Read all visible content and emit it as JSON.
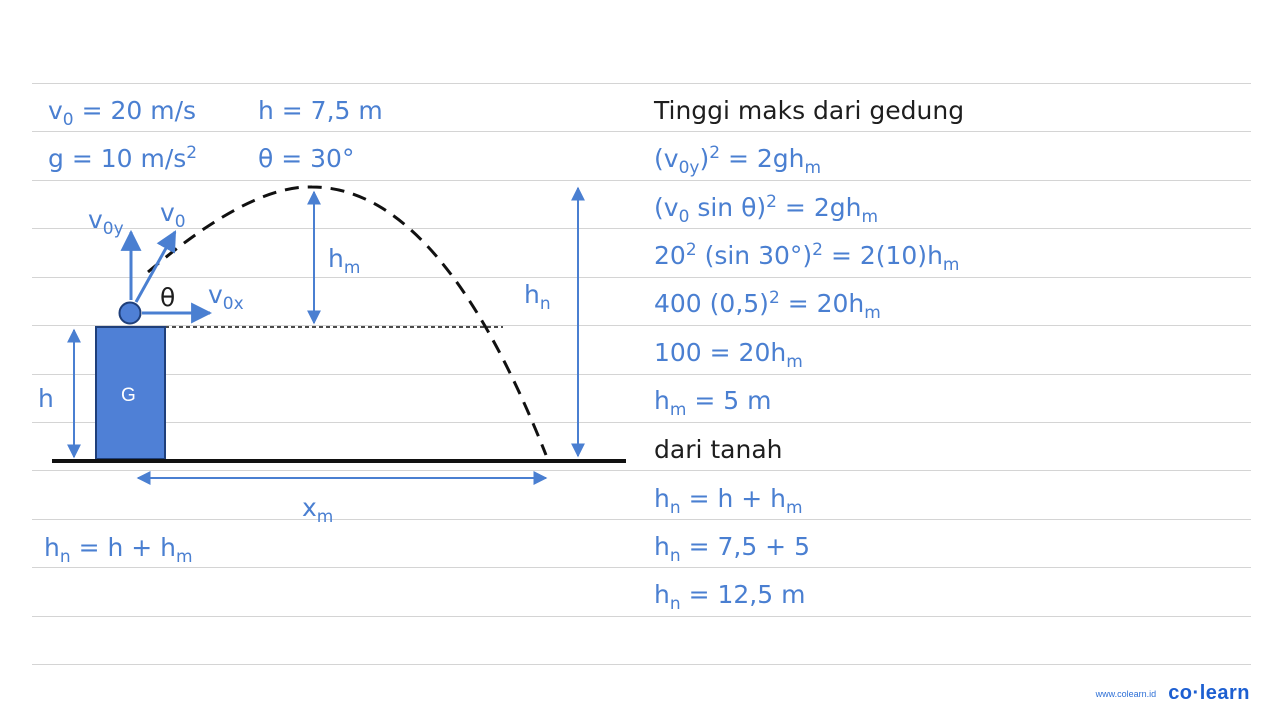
{
  "given": {
    "v0": {
      "sym": "v",
      "sub": "0",
      "rest": " = 20 m/s"
    },
    "h": {
      "text": "h = 7,5 m"
    },
    "g": {
      "pre": "g = 10 m/s",
      "sup": "2"
    },
    "theta": {
      "text": "θ = 30°"
    }
  },
  "diagram": {
    "labels": {
      "v0y_sym": "v",
      "v0y_sub": "0y",
      "v0_sym": "v",
      "v0_sub": "0",
      "theta": "θ",
      "v0x_sym": "v",
      "v0x_sub": "0x",
      "hm_sym": "h",
      "hm_sub": "m",
      "hn_sym": "h",
      "hn_sub": "n",
      "h": "h",
      "building": "G",
      "xm_sym": "x",
      "xm_sub": "m"
    },
    "colors": {
      "accent": "#4a7fd1",
      "building_fill": "#4f80d6",
      "ground": "#111111"
    }
  },
  "formula_left": {
    "a": "h",
    "a_sub": "n",
    "mid": " = h + h",
    "b_sub": "m"
  },
  "solution": {
    "title": "Tinggi maks dari gedung",
    "l1": {
      "p1": "(v",
      "s1": "0y",
      "p2": ")",
      "sup": "2",
      "p3": " = 2gh",
      "s2": "m"
    },
    "l2": {
      "p1": "(v",
      "s1": "0",
      "p2": " sin θ)",
      "sup": "2",
      "p3": " = 2gh",
      "s2": "m"
    },
    "l3": {
      "p1": "20",
      "sup1": "2",
      "p2": " (sin 30°)",
      "sup2": "2",
      "p3": " = 2(10)h",
      "s": "m"
    },
    "l4": {
      "p1": "400 (0,5)",
      "sup": "2",
      "p2": " = 20h",
      "s": "m"
    },
    "l5": {
      "p1": "100 = 20h",
      "s": "m"
    },
    "l6": {
      "p1": "h",
      "s": "m",
      "p2": " = 5 m"
    },
    "subtitle": "dari tanah",
    "l7": {
      "p1": "h",
      "s1": "n",
      "p2": " = h + h",
      "s2": "m"
    },
    "l8": {
      "p1": "h",
      "s": "n",
      "p2": " = 7,5 + 5"
    },
    "l9": {
      "p1": "h",
      "s": "n",
      "p2": " = 12,5 m"
    }
  },
  "brand": {
    "url": "www.colearn.id",
    "logo": "co·learn"
  }
}
